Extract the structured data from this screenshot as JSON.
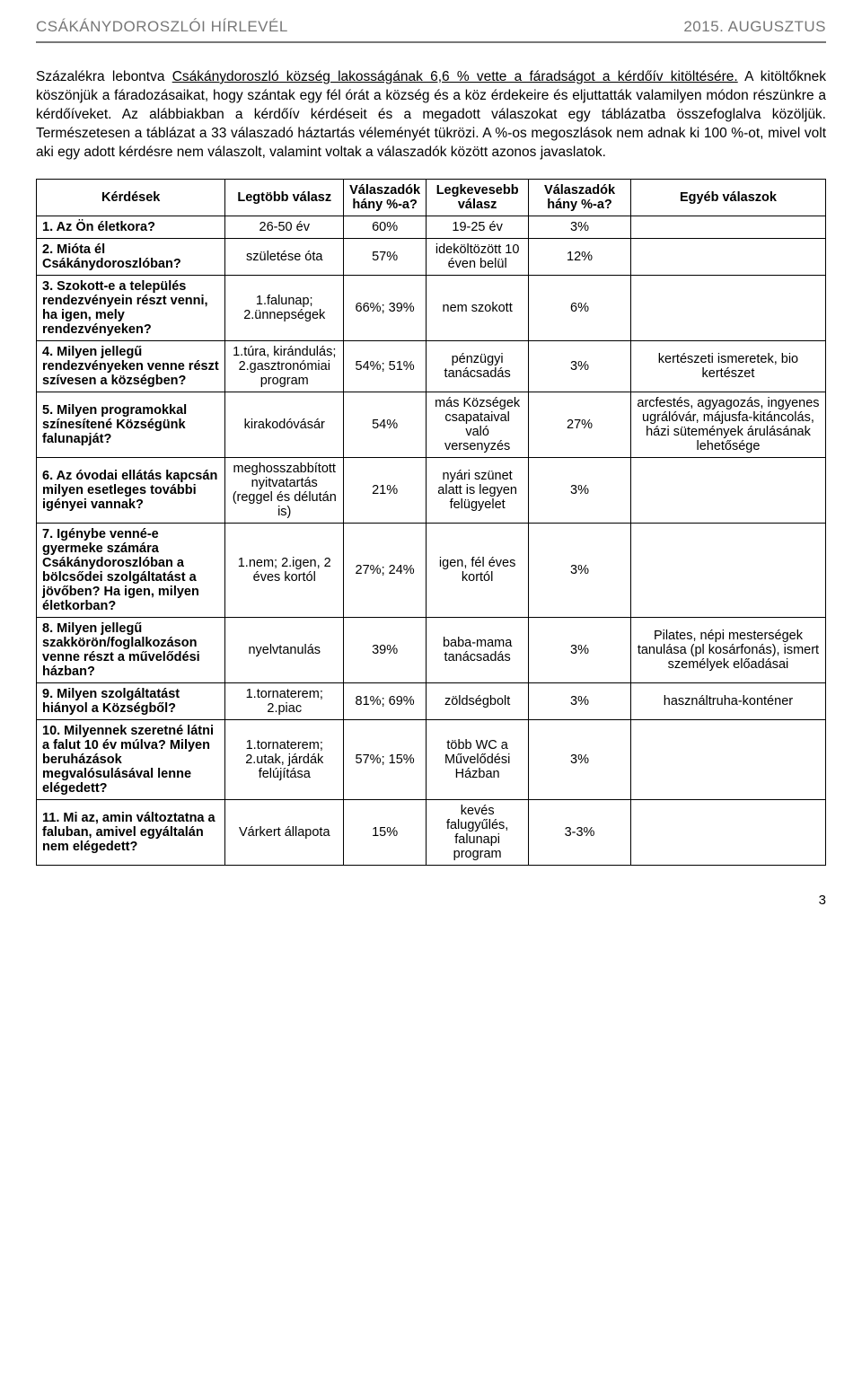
{
  "header": {
    "left": "CSÁKÁNYDOROSZLÓI HÍRLEVÉL",
    "right": "2015. AUGUSZTUS"
  },
  "intro": {
    "pre": "Százalékra lebontva ",
    "underline": "Csákánydoroszló község lakosságának 6,6 % vette a fáradságot a kérdőív kitöltésére.",
    "post": " A kitöltőknek köszönjük a fáradozásaikat, hogy szántak egy fél órát a község és a köz érdekeire és eljuttatták valamilyen módon részünkre a kérdőíveket. Az alábbiakban a kérdőív kérdéseit és a megadott válaszokat egy táblázatba összefoglalva közöljük. Természetesen a táblázat a 33 válaszadó háztartás véleményét tükrözi. A %-os megoszlások nem adnak ki 100 %-ot, mivel volt aki egy adott kérdésre nem válaszolt, valamint voltak a válaszadók között azonos javaslatok."
  },
  "table": {
    "headers": {
      "q": "Kérdések",
      "top": "Legtöbb válasz",
      "topPct": "Válaszadók hány %-a?",
      "least": "Legkevesebb válasz",
      "leastPct": "Válaszadók hány %-a?",
      "other": "Egyéb válaszok"
    },
    "rows": [
      {
        "q": "1. Az Ön életkora?",
        "top": "26-50 év",
        "topPct": "60%",
        "least": "19-25 év",
        "leastPct": "3%",
        "other": ""
      },
      {
        "q": "2. Mióta él Csákánydoroszlóban?",
        "top": "születése óta",
        "topPct": "57%",
        "least": "ideköltözött 10 éven belül",
        "leastPct": "12%",
        "other": ""
      },
      {
        "q": "3. Szokott-e a település rendezvényein részt venni, ha igen, mely rendezvényeken?",
        "top": "1.falunap; 2.ünnepségek",
        "topPct": "66%; 39%",
        "least": "nem szokott",
        "leastPct": "6%",
        "other": ""
      },
      {
        "q": "4. Milyen jellegű rendezvényeken venne részt szívesen a községben?",
        "top": "1.túra, kirándulás; 2.gasztronómiai program",
        "topPct": "54%; 51%",
        "least": "pénzügyi tanácsadás",
        "leastPct": "3%",
        "other": "kertészeti ismeretek, bio kertészet"
      },
      {
        "q": "5. Milyen programokkal színesítené Községünk falunapját?",
        "top": "kirakodóvásár",
        "topPct": "54%",
        "least": "más Községek csapataival való versenyzés",
        "leastPct": "27%",
        "other": "arcfestés, agyagozás, ingyenes ugrálóvár, májusfa-kitáncolás, házi sütemények árulásának lehetősége"
      },
      {
        "q": "6. Az óvodai ellátás kapcsán milyen esetleges további igényei vannak?",
        "top": "meghosszabbított nyitvatartás (reggel és délután is)",
        "topPct": "21%",
        "least": "nyári szünet alatt is legyen felügyelet",
        "leastPct": "3%",
        "other": ""
      },
      {
        "q": "7. Igénybe venné-e gyermeke számára Csákánydoroszlóban a bölcsődei szolgáltatást a jövőben? Ha igen, milyen életkorban?",
        "top": "1.nem; 2.igen, 2 éves kortól",
        "topPct": "27%; 24%",
        "least": "igen, fél éves kortól",
        "leastPct": "3%",
        "other": ""
      },
      {
        "q": "8. Milyen jellegű szakkörön/foglalkozáson venne részt a művelődési házban?",
        "top": "nyelvtanulás",
        "topPct": "39%",
        "least": "baba-mama tanácsadás",
        "leastPct": "3%",
        "other": "Pilates, népi mesterségek tanulása (pl kosárfonás), ismert személyek előadásai"
      },
      {
        "q": "9. Milyen szolgáltatást hiányol a Községből?",
        "top": "1.tornaterem; 2.piac",
        "topPct": "81%; 69%",
        "least": "zöldségbolt",
        "leastPct": "3%",
        "other": "használtruha-konténer"
      },
      {
        "q": "10. Milyennek szeretné látni a falut 10 év múlva? Milyen beruházások megvalósulásával lenne elégedett?",
        "top": "1.tornaterem; 2.utak, járdák felújítása",
        "topPct": "57%; 15%",
        "least": "több WC a Művelődési Házban",
        "leastPct": "3%",
        "other": ""
      },
      {
        "q": "11. Mi az, amin változtatna a faluban, amivel egyáltalán nem elégedett?",
        "top": "Várkert állapota",
        "topPct": "15%",
        "least": "kevés falugyűlés, falunapi program",
        "leastPct": "3-3%",
        "other": ""
      }
    ]
  },
  "pageNumber": "3"
}
